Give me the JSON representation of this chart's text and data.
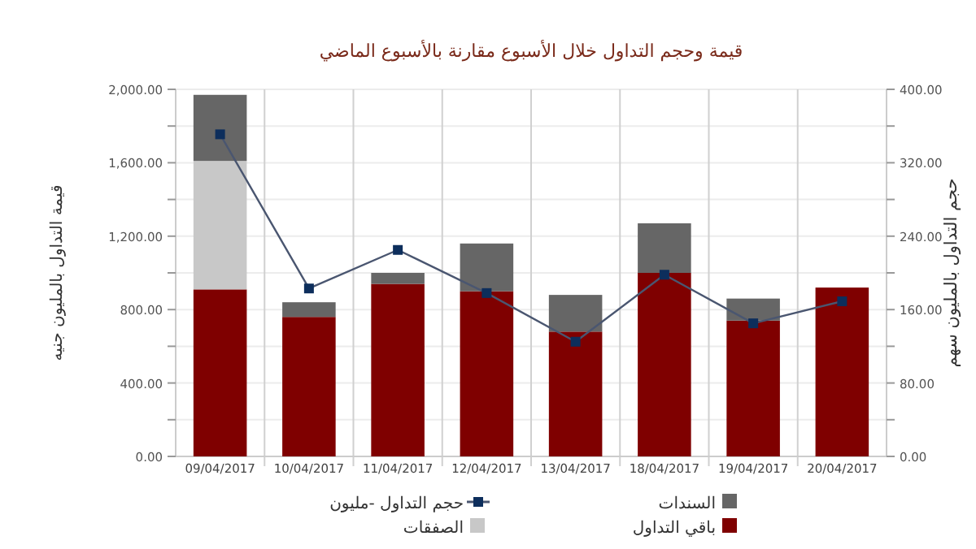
{
  "chart_data": {
    "type": "bar",
    "title": "قيمة وحجم التداول خلال الأسبوع مقارنة بالأسبوع الماضي",
    "ylabel": "قيمة التداول بالمليون جنيه",
    "y2label": "حجم التداول بالمليون سهم",
    "categories": [
      "09/04/2017",
      "10/04/2017",
      "11/04/2017",
      "12/04/2017",
      "13/04/2017",
      "18/04/2017",
      "19/04/2017",
      "20/04/2017"
    ],
    "stacked": true,
    "grid": true,
    "legend": "bottom",
    "series": [
      {
        "name": "باقي التداول",
        "color": "#7f0000",
        "values": [
          910,
          760,
          940,
          900,
          680,
          1000,
          740,
          920
        ]
      },
      {
        "name": "الصفقات",
        "color": "#c8c8c8",
        "values": [
          700,
          null,
          null,
          null,
          null,
          null,
          null,
          null
        ]
      },
      {
        "name": "السندات",
        "color": "#666666",
        "values": [
          360,
          80,
          60,
          260,
          200,
          270,
          120,
          null
        ]
      },
      {
        "name": "حجم التداول -مليون",
        "type": "line",
        "axis": "y2",
        "color": "#4a5670",
        "marker": "square",
        "values": [
          351,
          183,
          225,
          178,
          125,
          198,
          145,
          169
        ]
      }
    ],
    "ylim": [
      0,
      2000
    ],
    "yticks": [
      {
        "value": 0,
        "label": "0.00"
      },
      {
        "value": 200,
        "label": null
      },
      {
        "value": 400,
        "label": "400.00"
      },
      {
        "value": 600,
        "label": null
      },
      {
        "value": 800,
        "label": "800.00"
      },
      {
        "value": 1000,
        "label": null
      },
      {
        "value": 1200,
        "label": "1,200.00"
      },
      {
        "value": 1400,
        "label": null
      },
      {
        "value": 1600,
        "label": "1,600.00"
      },
      {
        "value": 1800,
        "label": null
      },
      {
        "value": 2000,
        "label": "2,000.00"
      }
    ],
    "y2lim": [
      0,
      400
    ],
    "y2ticks": [
      {
        "value": 0,
        "label": "0.00"
      },
      {
        "value": 40,
        "label": null
      },
      {
        "value": 80,
        "label": "80.00"
      },
      {
        "value": 120,
        "label": null
      },
      {
        "value": 160,
        "label": "160.00"
      },
      {
        "value": 200,
        "label": null
      },
      {
        "value": 240,
        "label": "240.00"
      },
      {
        "value": 280,
        "label": null
      },
      {
        "value": 320,
        "label": "320.00"
      },
      {
        "value": 360,
        "label": null
      },
      {
        "value": 400,
        "label": "400.00"
      }
    ]
  }
}
